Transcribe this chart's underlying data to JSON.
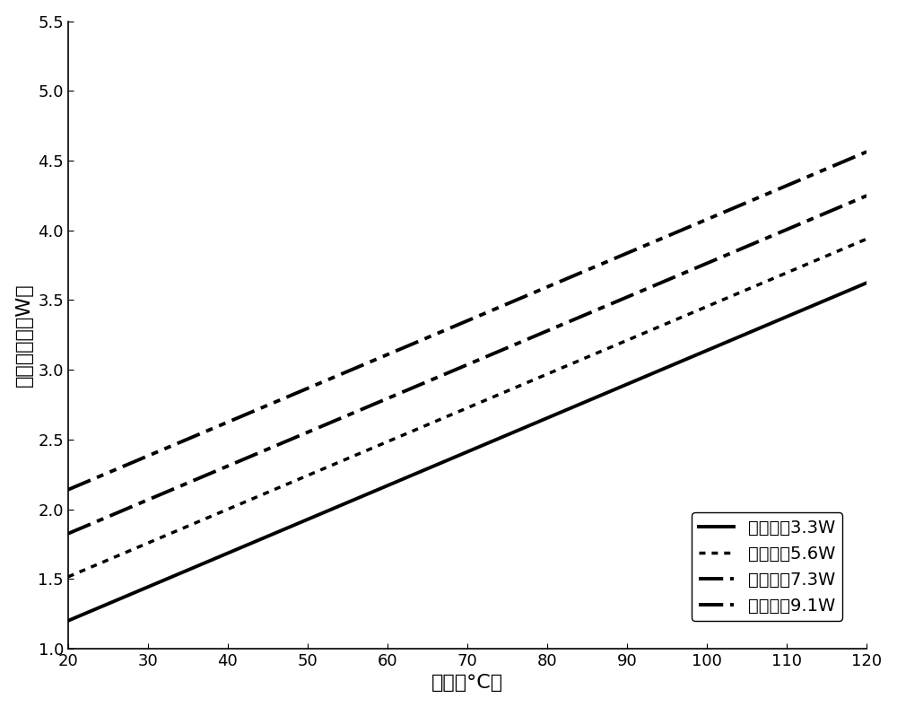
{
  "title": "",
  "xlabel": "温度（°C）",
  "ylabel": "热功率损失（W）",
  "xlim": [
    20,
    120
  ],
  "ylim": [
    1.0,
    5.5
  ],
  "xticks": [
    20,
    30,
    40,
    50,
    60,
    70,
    80,
    90,
    100,
    110,
    120
  ],
  "yticks": [
    1.0,
    1.5,
    2.0,
    2.5,
    3.0,
    3.5,
    4.0,
    4.5,
    5.0,
    5.5
  ],
  "lines": [
    {
      "label": "加热功率3.3W",
      "slope": 0.02424,
      "intercept": 0.715,
      "color": "#000000",
      "linewidth": 2.8
    },
    {
      "label": "加热功率5.6W",
      "slope": 0.02424,
      "intercept": 1.03,
      "color": "#000000",
      "linewidth": 2.5
    },
    {
      "label": "加热功率7.3W",
      "slope": 0.02424,
      "intercept": 1.34,
      "color": "#000000",
      "linewidth": 2.8
    },
    {
      "label": "加热功率9.1W",
      "slope": 0.02424,
      "intercept": 1.655,
      "color": "#000000",
      "linewidth": 2.8
    }
  ],
  "legend_fontsize": 14,
  "axis_label_fontsize": 16,
  "tick_fontsize": 13,
  "background_color": "#ffffff",
  "spine_color": "#000000"
}
